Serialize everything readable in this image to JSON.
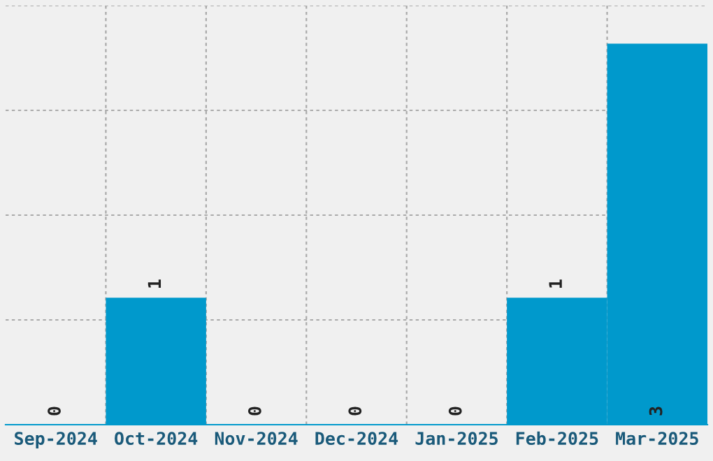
{
  "chart_data": {
    "type": "bar",
    "categories": [
      "Sep-2024",
      "Oct-2024",
      "Nov-2024",
      "Dec-2024",
      "Jan-2025",
      "Feb-2025",
      "Mar-2025"
    ],
    "values": [
      0,
      1,
      0,
      0,
      0,
      1,
      3
    ],
    "color": "#0099cc",
    "ylim": [
      0,
      3.3
    ],
    "yticks": [
      {
        "value": 0.825,
        "label": null
      },
      {
        "value": 1.65,
        "label": null
      },
      {
        "value": 2.475,
        "label": null
      },
      {
        "value": 3.3,
        "label": null
      }
    ],
    "tick_labels": "x",
    "grid": true,
    "data_labels": true
  }
}
